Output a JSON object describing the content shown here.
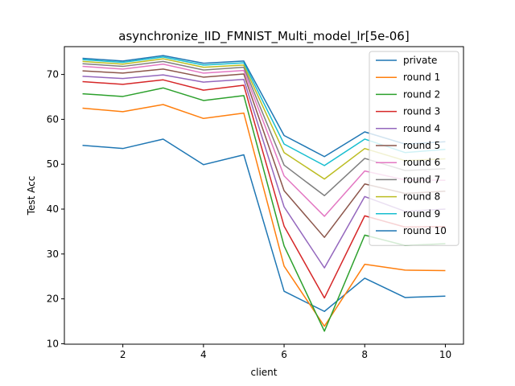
{
  "chart_data": {
    "type": "line",
    "title": "asynchronize_IID_FMNIST_Multi_model_lr[5e-06]",
    "xlabel": "client",
    "ylabel": "Test Acc",
    "x": [
      1,
      2,
      3,
      4,
      5,
      6,
      7,
      8,
      9,
      10
    ],
    "xlim": [
      0.55,
      10.45
    ],
    "ylim": [
      9.9,
      76.2
    ],
    "xticks": [
      2,
      4,
      6,
      8,
      10
    ],
    "yticks": [
      10,
      20,
      30,
      40,
      50,
      60,
      70
    ],
    "grid": false,
    "legend_position": "upper-right",
    "series": [
      {
        "name": "private",
        "color": "#1f77b4",
        "values": [
          54.2,
          53.5,
          55.6,
          49.9,
          52.1,
          21.7,
          17.2,
          24.6,
          20.3,
          20.6
        ]
      },
      {
        "name": "round 1",
        "color": "#ff7f0e",
        "values": [
          62.5,
          61.7,
          63.3,
          60.2,
          61.4,
          27.3,
          13.9,
          27.7,
          26.4,
          26.3
        ]
      },
      {
        "name": "round 2",
        "color": "#2ca02c",
        "values": [
          65.7,
          65.1,
          67.0,
          64.2,
          65.3,
          31.8,
          12.8,
          34.2,
          31.9,
          32.3
        ]
      },
      {
        "name": "round 3",
        "color": "#d62728",
        "values": [
          68.4,
          67.8,
          68.8,
          66.5,
          67.6,
          36.2,
          20.2,
          38.5,
          36.0,
          36.1
        ]
      },
      {
        "name": "round 4",
        "color": "#9467bd",
        "values": [
          69.6,
          69.1,
          69.9,
          68.3,
          68.9,
          40.5,
          26.9,
          42.8,
          39.5,
          40.0
        ]
      },
      {
        "name": "round 5",
        "color": "#8c564b",
        "values": [
          70.8,
          70.3,
          71.2,
          69.4,
          70.1,
          44.1,
          33.7,
          45.6,
          43.5,
          44.0
        ]
      },
      {
        "name": "round 6",
        "color": "#e377c2",
        "values": [
          71.8,
          71.2,
          72.3,
          70.3,
          70.9,
          47.4,
          38.4,
          48.5,
          46.5,
          46.4
        ]
      },
      {
        "name": "round 7",
        "color": "#7f7f7f",
        "values": [
          72.4,
          71.8,
          72.9,
          71.0,
          71.6,
          49.8,
          43.0,
          51.3,
          48.6,
          49.0
        ]
      },
      {
        "name": "round 8",
        "color": "#bcbd22",
        "values": [
          72.9,
          72.3,
          73.5,
          71.6,
          72.1,
          52.6,
          46.7,
          53.5,
          50.8,
          51.2
        ]
      },
      {
        "name": "round 9",
        "color": "#17becf",
        "values": [
          73.3,
          72.7,
          73.9,
          72.1,
          72.6,
          54.5,
          49.7,
          55.6,
          52.6,
          53.3
        ]
      },
      {
        "name": "round 10",
        "color": "#1f77b4",
        "values": [
          73.6,
          73.0,
          74.2,
          72.5,
          73.0,
          56.4,
          51.7,
          57.2,
          54.5,
          55.0
        ]
      }
    ]
  }
}
